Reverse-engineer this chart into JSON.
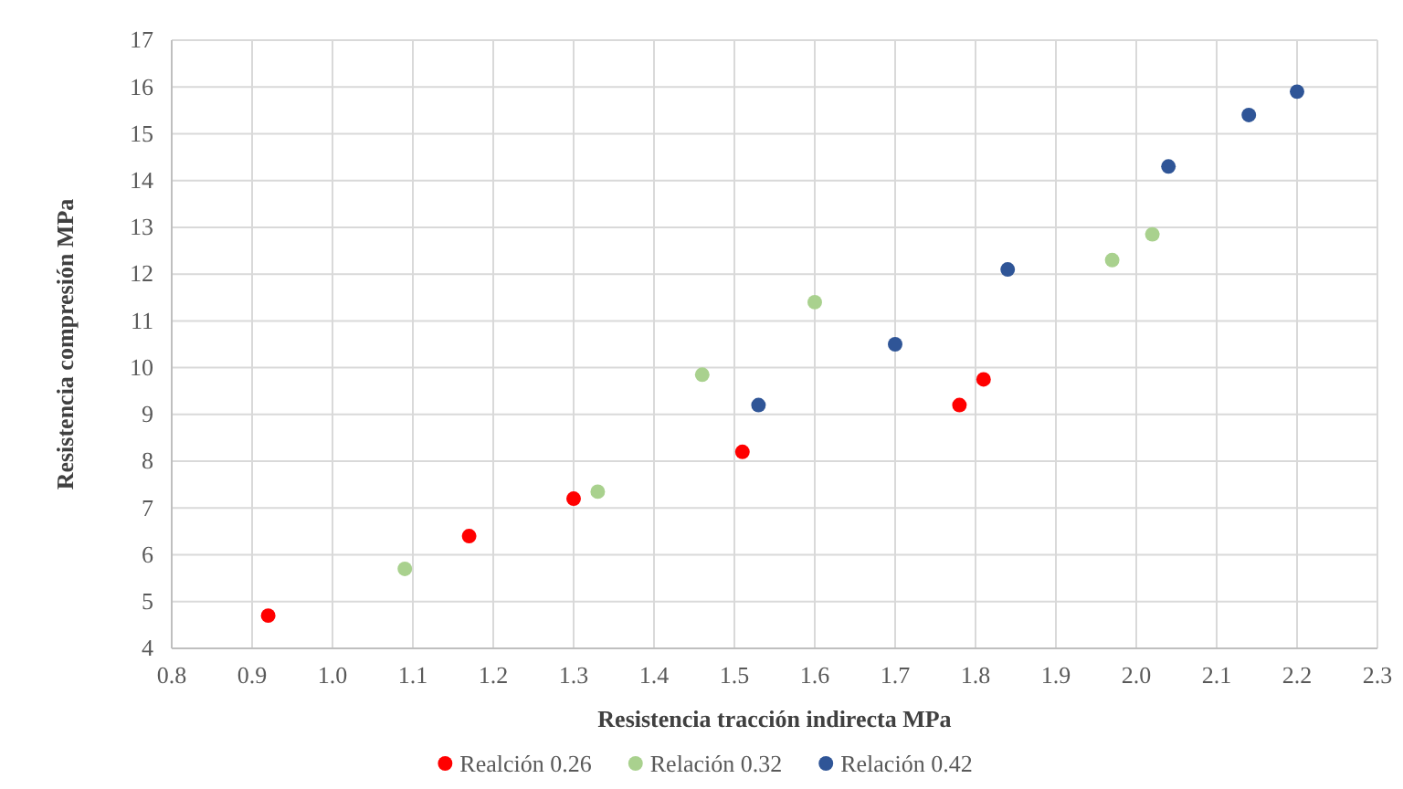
{
  "chart_data": {
    "type": "scatter",
    "xlabel": "Resistencia tracción indirecta MPa",
    "ylabel": "Resistencia compresión MPa",
    "xlim": [
      0.8,
      2.3
    ],
    "xticks": [
      {
        "value": 0.8,
        "label": "0.8"
      },
      {
        "value": 0.9,
        "label": "0.9"
      },
      {
        "value": 1.0,
        "label": "1.0"
      },
      {
        "value": 1.1,
        "label": "1.1"
      },
      {
        "value": 1.2,
        "label": "1.2"
      },
      {
        "value": 1.3,
        "label": "1.3"
      },
      {
        "value": 1.4,
        "label": "1.4"
      },
      {
        "value": 1.5,
        "label": "1.5"
      },
      {
        "value": 1.6,
        "label": "1.6"
      },
      {
        "value": 1.7,
        "label": "1.7"
      },
      {
        "value": 1.8,
        "label": "1.8"
      },
      {
        "value": 1.9,
        "label": "1.9"
      },
      {
        "value": 2.0,
        "label": "2.0"
      },
      {
        "value": 2.1,
        "label": "2.1"
      },
      {
        "value": 2.2,
        "label": "2.2"
      },
      {
        "value": 2.3,
        "label": "2.3"
      }
    ],
    "ylim": [
      4,
      17
    ],
    "yticks": [
      4,
      5,
      6,
      7,
      8,
      9,
      10,
      11,
      12,
      13,
      14,
      15,
      16,
      17
    ],
    "grid": true,
    "legend": "bottom",
    "marker": "circle",
    "series": [
      {
        "name": "Realción 0.26",
        "color": "#ff0000",
        "x": [
          0.92,
          1.17,
          1.3,
          1.51,
          1.78,
          1.81
        ],
        "values": [
          4.7,
          6.4,
          7.2,
          8.2,
          9.2,
          9.75
        ]
      },
      {
        "name": "Relación 0.32",
        "color": "#a9d18e",
        "x": [
          1.09,
          1.33,
          1.46,
          1.6,
          1.97,
          2.02
        ],
        "values": [
          5.7,
          7.35,
          9.85,
          11.4,
          12.3,
          12.85
        ]
      },
      {
        "name": "Relación 0.42",
        "color": "#2f5597",
        "x": [
          1.53,
          1.7,
          1.84,
          2.04,
          2.14,
          2.2
        ],
        "values": [
          9.2,
          10.5,
          12.1,
          14.3,
          15.4,
          15.9
        ]
      }
    ]
  }
}
